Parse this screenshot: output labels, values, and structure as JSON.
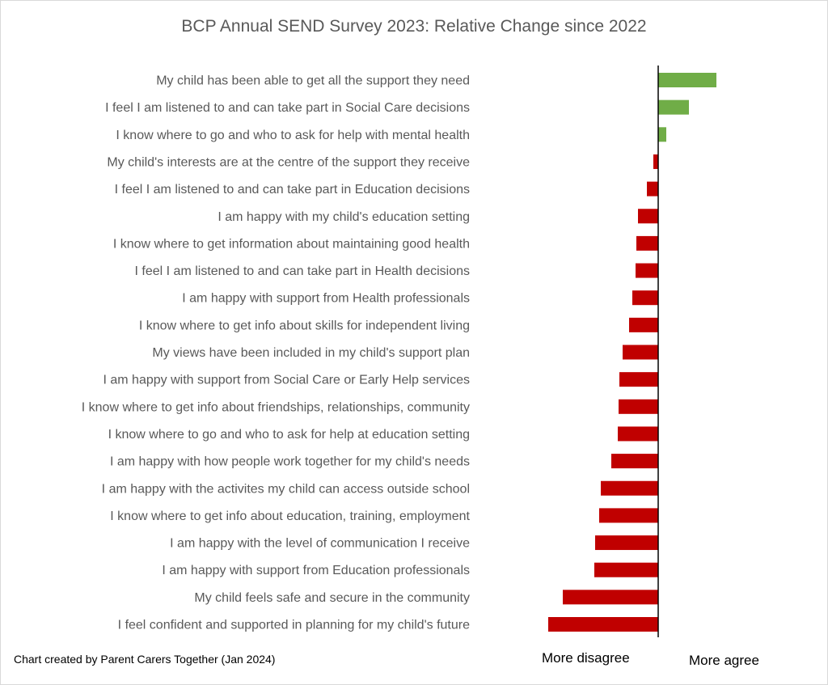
{
  "chart_data": {
    "type": "bar",
    "orientation": "horizontal",
    "title": "BCP Annual SEND Survey 2023: Relative Change since 2022",
    "categories": [
      "My child has been able to get all the support they need",
      "I feel I am listened to and can take part in Social Care decisions",
      "I know where to go and who to ask for help with mental health",
      "My child's interests are at the centre of the support they receive",
      "I feel I am listened to and can take part in Education decisions",
      "I am happy with my child's education setting",
      "I know where to get information about maintaining good health",
      "I feel I am listened to and can take part in Health decisions",
      "I am happy with support from Health professionals",
      "I know where to get info about skills for independent living",
      "My views have been included in my child's support plan",
      "I am happy with support from Social Care or Early Help services",
      "I know where to get info about friendships, relationships, community",
      "I know where to go and who to ask for help at education setting",
      "I am happy with how people work together for my child's needs",
      "I am happy with the activites my child can access outside school",
      "I know where to get info about education, training, employment",
      "I am happy with the level of communication I receive",
      "I am happy with support from Education professionals",
      "My child feels safe and secure in the community",
      "I feel confident and supported in planning for my child's future"
    ],
    "values": [
      72,
      38,
      10,
      -6,
      -14,
      -25,
      -27,
      -28,
      -32,
      -36,
      -44,
      -48,
      -49,
      -50,
      -58,
      -71,
      -73,
      -78,
      -79,
      -118,
      -136
    ],
    "xlim": [
      -140,
      75
    ],
    "positive_color": "#70ad47",
    "negative_color": "#c00000",
    "axis_annotations": {
      "left": "More disagree",
      "right": "More agree"
    },
    "footnote": "Chart created by Parent Carers Together (Jan 2024)"
  }
}
